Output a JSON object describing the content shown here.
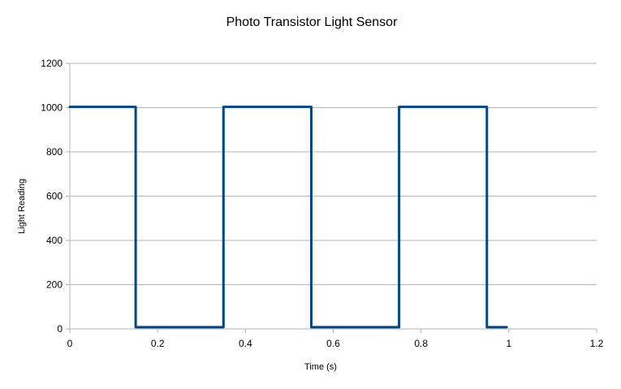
{
  "chart_data": {
    "type": "line",
    "title": "Photo Transistor Light Sensor",
    "xlabel": "Time (s)",
    "ylabel": "Light Reading",
    "xlim": [
      0,
      1.2
    ],
    "ylim": [
      0,
      1200
    ],
    "xticks": [
      0,
      0.2,
      0.4,
      0.6,
      0.8,
      1,
      1.2
    ],
    "yticks": [
      0,
      200,
      400,
      600,
      800,
      1000,
      1200
    ],
    "grid": "horizontal",
    "legend": "none",
    "series_color": "#004586",
    "series": [
      {
        "x": [
          0,
          0.15,
          0.15,
          0.35,
          0.35,
          0.55,
          0.55,
          0.75,
          0.75,
          0.95,
          0.95,
          0.995
        ],
        "y": [
          1003,
          1003,
          8,
          8,
          1003,
          1003,
          8,
          8,
          1003,
          1003,
          8,
          8
        ]
      }
    ]
  }
}
